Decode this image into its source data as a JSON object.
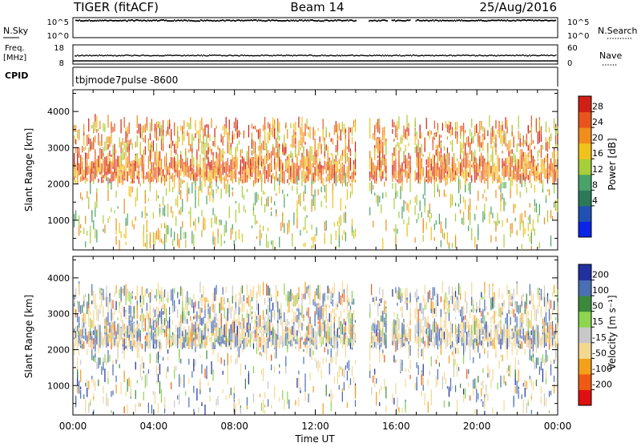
{
  "header": {
    "radar_label": "TIGER (fitACF)",
    "beam_label": "Beam 14",
    "date_label": "25/Aug/2016"
  },
  "top_panels": {
    "nsky": {
      "label": "N.Sky",
      "tick_labels_left": [
        "10^5",
        "10^0"
      ],
      "tick_labels_right": [
        "10^5",
        "10^0"
      ],
      "right_label": "N.Search"
    },
    "freq": {
      "label_line1": "Freq.",
      "label_line2": "[MHz]",
      "tick_labels_left": [
        "18",
        "8"
      ],
      "tick_labels_right": [
        "60",
        "0"
      ],
      "right_label": "Nave"
    },
    "cpid": {
      "label": "CPID",
      "text": "tbjmode7pulse  -8600"
    }
  },
  "colors": {
    "power_scale": [
      "#0a24e8",
      "#2050b4",
      "#2a7a5a",
      "#49a36a",
      "#a6cf3a",
      "#f2c21c",
      "#f28c1a",
      "#e8551c",
      "#d21f16"
    ],
    "velocity_scale": [
      "#e01010",
      "#ef5a12",
      "#f5a01a",
      "#f5d890",
      "#c8c8c8",
      "#8cd650",
      "#3a8a3a",
      "#4a6fb5",
      "#2030a0"
    ]
  },
  "power_colorbar": {
    "label": "Power [dB]",
    "tick_labels": [
      "28",
      "24",
      "20",
      "16",
      "12",
      "8",
      "4"
    ]
  },
  "velocity_colorbar": {
    "label": "Velocity [m s⁻¹]",
    "tick_labels": [
      "200",
      "100",
      "50",
      "15",
      "-15",
      "-50",
      "-100",
      "-200"
    ]
  },
  "x_axis": {
    "label": "Time UT",
    "tick_labels": [
      "00:00",
      "04:00",
      "08:00",
      "12:00",
      "16:00",
      "20:00",
      "00:00"
    ]
  },
  "chart_data": [
    {
      "type": "heatmap",
      "panel": "power",
      "xlabel": "Time UT",
      "ylabel": "Slant Range [km]",
      "xlim": [
        0,
        24
      ],
      "ylim": [
        180,
        4600
      ],
      "y_ticks": [
        1000,
        2000,
        3000,
        4000
      ],
      "colorbar": {
        "label": "Power [dB]",
        "ticks": [
          28,
          24,
          20,
          16,
          12,
          8,
          4
        ],
        "range": [
          0,
          32
        ]
      },
      "data_gaps_hours": [
        [
          14.0,
          14.6
        ],
        [
          15.55,
          15.75
        ],
        [
          16.7,
          16.9
        ]
      ],
      "range_band_km": [
        180,
        3580
      ],
      "strong_echo_band_km": [
        2000,
        2500
      ]
    },
    {
      "type": "heatmap",
      "panel": "velocity",
      "xlabel": "Time UT",
      "ylabel": "Slant Range [km]",
      "xlim": [
        0,
        24
      ],
      "ylim": [
        180,
        4600
      ],
      "y_ticks": [
        1000,
        2000,
        3000,
        4000
      ],
      "colorbar": {
        "label": "Velocity [m s⁻¹]",
        "ticks": [
          200,
          100,
          50,
          15,
          -15,
          -50,
          -100,
          -200
        ],
        "range": [
          -250,
          250
        ]
      },
      "data_gaps_hours": [
        [
          14.0,
          14.6
        ],
        [
          15.55,
          15.75
        ],
        [
          16.7,
          16.9
        ]
      ],
      "range_band_km": [
        180,
        3580
      ]
    }
  ]
}
